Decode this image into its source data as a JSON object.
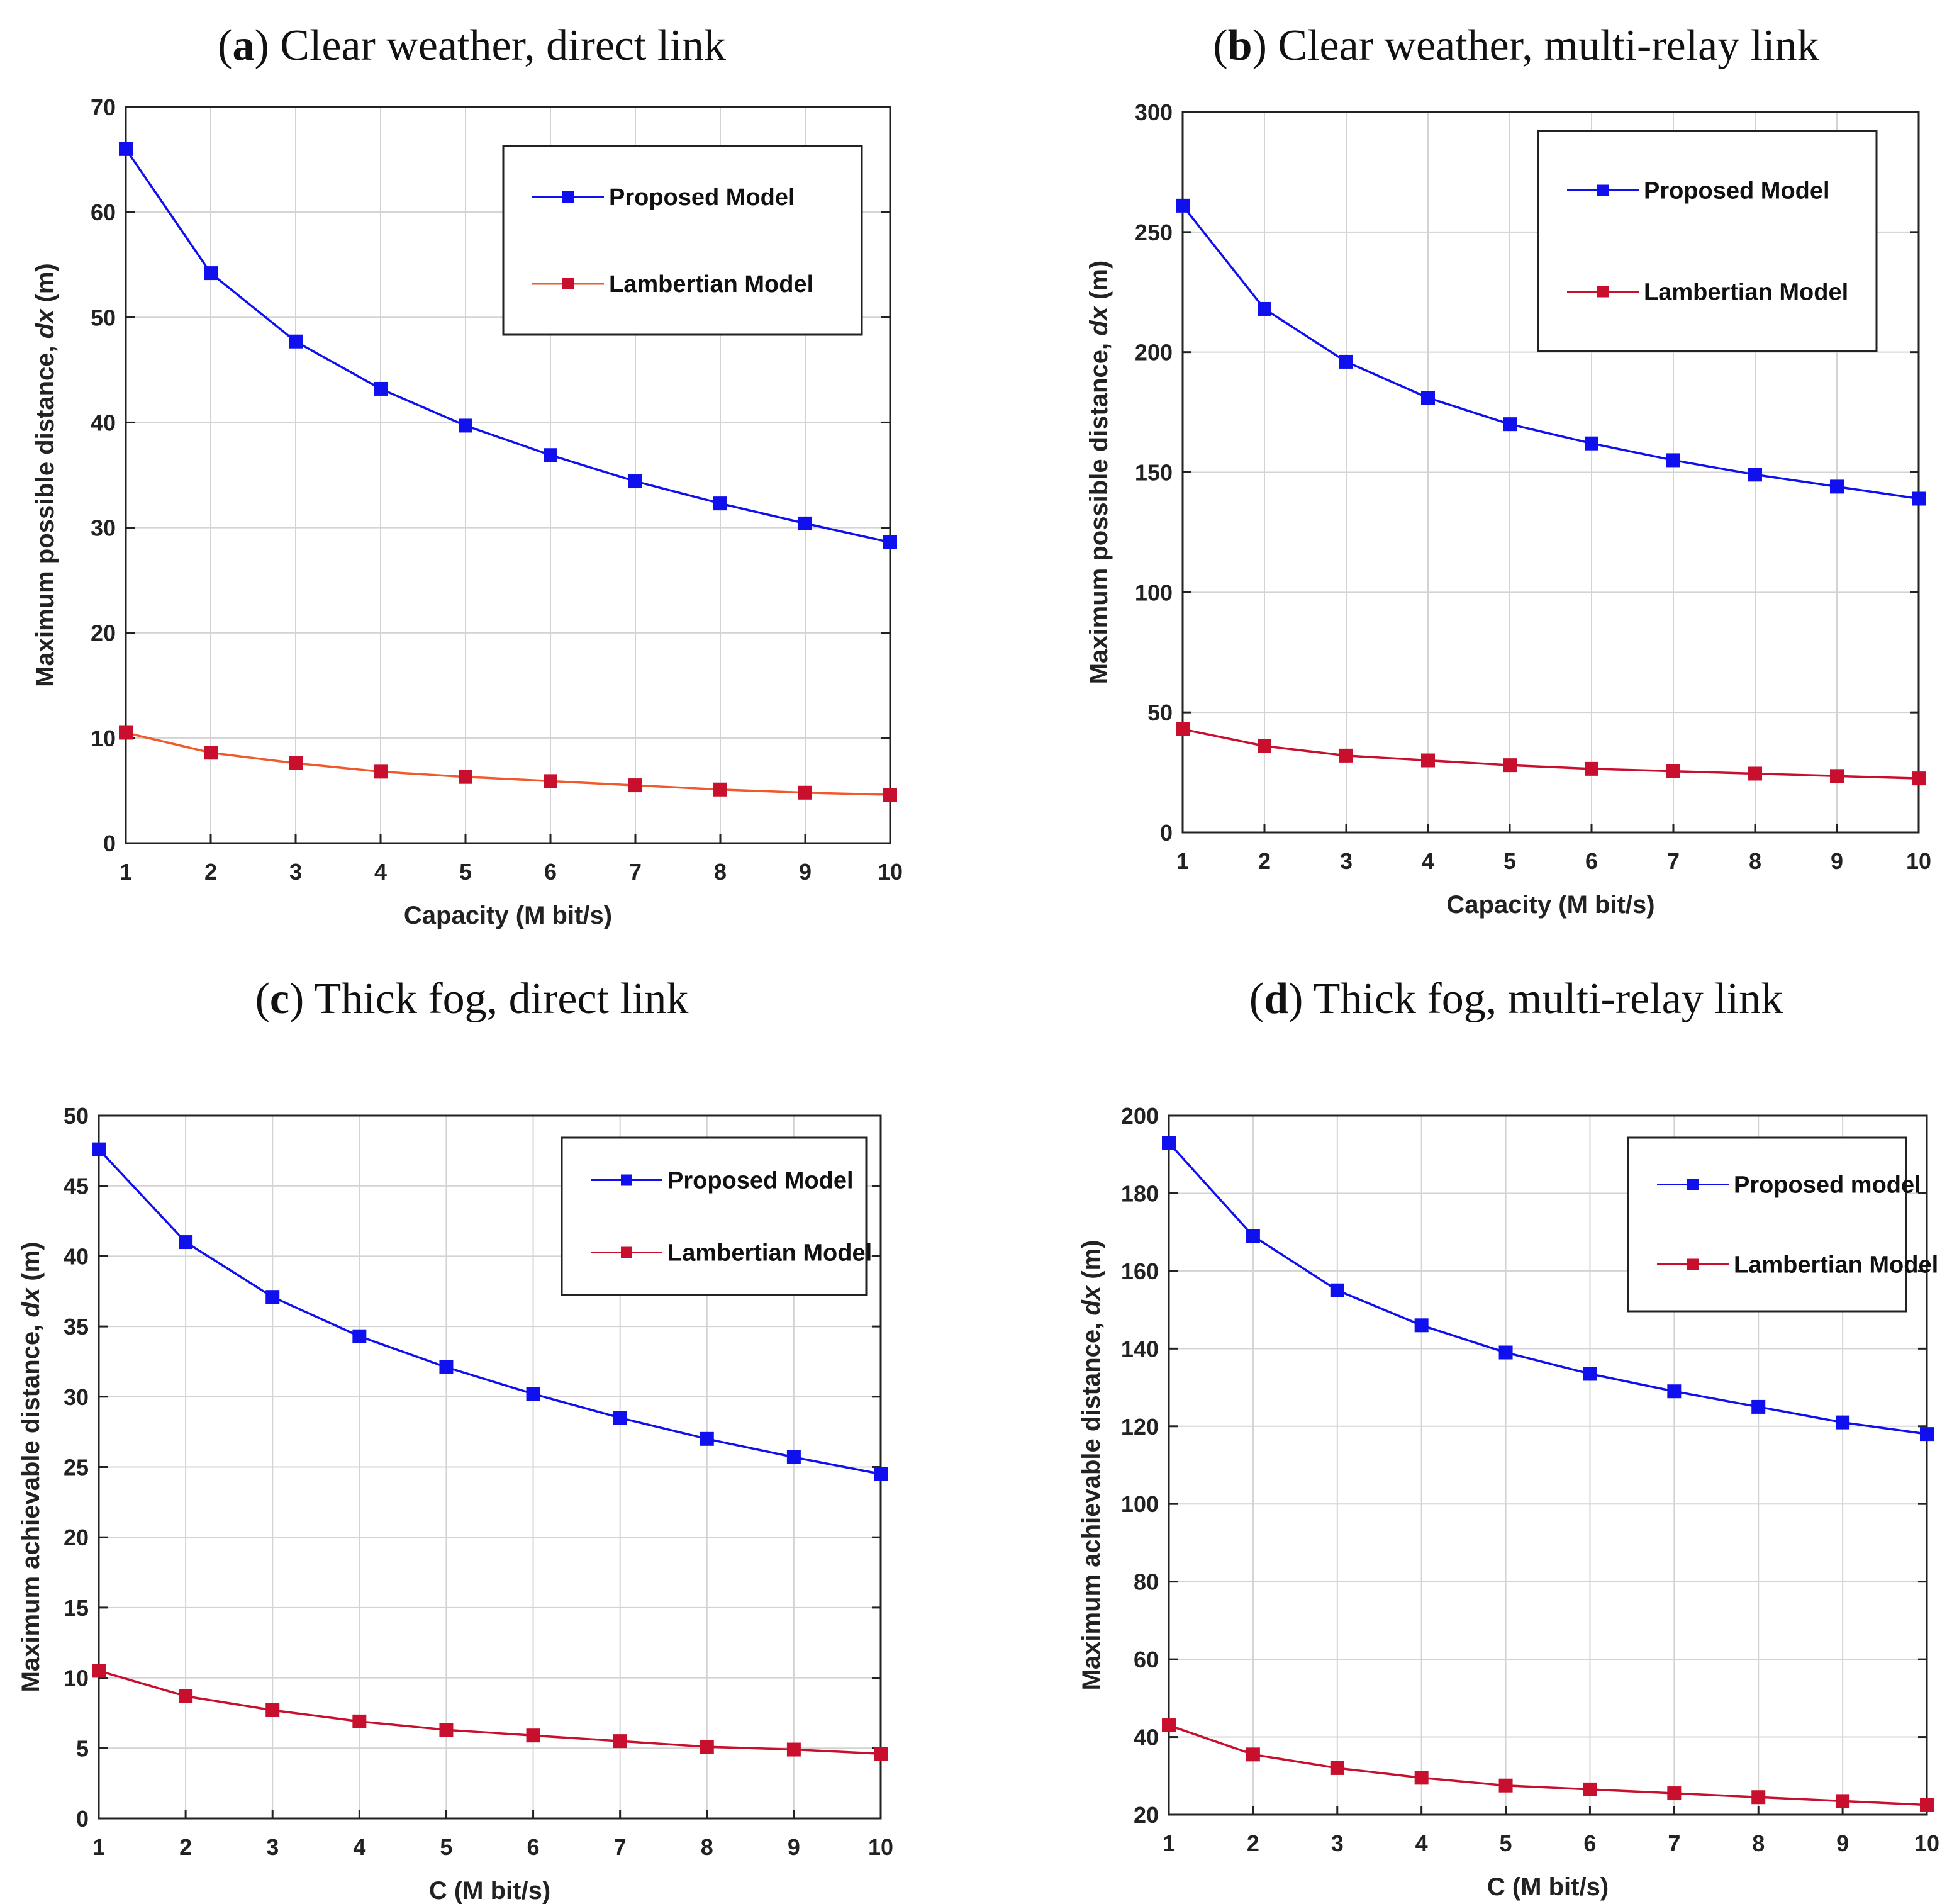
{
  "chart_data": [
    {
      "type": "line",
      "label": "a",
      "title": "Clear weather, direct link",
      "xlabel": "Capacity (M bit/s)",
      "ylabel_prefix": "Maximum possible distance,",
      "ylabel_var": "dx",
      "ylabel_unit": "(m)",
      "x": [
        1,
        2,
        3,
        4,
        5,
        6,
        7,
        8,
        9,
        10
      ],
      "xlim": [
        1,
        10
      ],
      "ylim": [
        0,
        70
      ],
      "yticks": [
        0,
        10,
        20,
        30,
        40,
        50,
        60,
        70
      ],
      "grid": true,
      "legend_position": "top-right",
      "series": [
        {
          "name": "Proposed Model",
          "color": "#1010ee",
          "values": [
            66.0,
            54.2,
            47.7,
            43.2,
            39.7,
            36.9,
            34.4,
            32.3,
            30.4,
            28.6
          ]
        },
        {
          "name": "Lambertian Model",
          "color": "#f05a2a",
          "marker_color": "#c8102e",
          "values": [
            10.5,
            8.6,
            7.6,
            6.8,
            6.3,
            5.9,
            5.5,
            5.1,
            4.8,
            4.6
          ]
        }
      ]
    },
    {
      "type": "line",
      "label": "b",
      "title": "Clear weather, multi-relay link",
      "xlabel": "Capacity (M bit/s)",
      "ylabel_prefix": "Maximum possible distance,",
      "ylabel_var": "dx",
      "ylabel_unit": "(m)",
      "x": [
        1,
        2,
        3,
        4,
        5,
        6,
        7,
        8,
        9,
        10
      ],
      "xlim": [
        1,
        10
      ],
      "ylim": [
        0,
        300
      ],
      "yticks": [
        0,
        50,
        100,
        150,
        200,
        250,
        300
      ],
      "grid": true,
      "legend_position": "top-right",
      "series": [
        {
          "name": "Proposed Model",
          "color": "#1010ee",
          "values": [
            261,
            218,
            196,
            181,
            170,
            162,
            155,
            149,
            144,
            139
          ]
        },
        {
          "name": "Lambertian Model",
          "color": "#c8102e",
          "values": [
            43,
            36,
            32,
            30,
            28,
            26.5,
            25.5,
            24.5,
            23.5,
            22.5
          ]
        }
      ]
    },
    {
      "type": "line",
      "label": "c",
      "title": "Thick fog, direct link",
      "xlabel": "C (M bit/s)",
      "ylabel_prefix": "Maximum achievable distance,",
      "ylabel_var": "dx",
      "ylabel_unit": "(m)",
      "x": [
        1,
        2,
        3,
        4,
        5,
        6,
        7,
        8,
        9,
        10
      ],
      "xlim": [
        1,
        10
      ],
      "ylim": [
        0,
        50
      ],
      "yticks": [
        0,
        5,
        10,
        15,
        20,
        25,
        30,
        35,
        40,
        45,
        50
      ],
      "grid": true,
      "legend_position": "top-right",
      "series": [
        {
          "name": "Proposed Model",
          "color": "#1010ee",
          "values": [
            47.6,
            41.0,
            37.1,
            34.3,
            32.1,
            30.2,
            28.5,
            27.0,
            25.7,
            24.5
          ]
        },
        {
          "name": "Lambertian Model",
          "color": "#c8102e",
          "values": [
            10.5,
            8.7,
            7.7,
            6.9,
            6.3,
            5.9,
            5.5,
            5.1,
            4.9,
            4.6
          ]
        }
      ]
    },
    {
      "type": "line",
      "label": "d",
      "title": "Thick fog, multi-relay link",
      "xlabel": "C (M bit/s)",
      "ylabel_prefix": "Maximum achievable distance,",
      "ylabel_var": "dx",
      "ylabel_unit": "(m)",
      "x": [
        1,
        2,
        3,
        4,
        5,
        6,
        7,
        8,
        9,
        10
      ],
      "xlim": [
        1,
        10
      ],
      "ylim": [
        20,
        200
      ],
      "yticks": [
        20,
        40,
        60,
        80,
        100,
        120,
        140,
        160,
        180,
        200
      ],
      "grid": true,
      "legend_position": "top-right",
      "series": [
        {
          "name": "Proposed model",
          "color": "#1010ee",
          "values": [
            193,
            169,
            155,
            146,
            139,
            133.5,
            129,
            125,
            121,
            118
          ]
        },
        {
          "name": "Lambertian Model",
          "color": "#c8102e",
          "values": [
            43,
            35.5,
            32,
            29.5,
            27.5,
            26.5,
            25.5,
            24.5,
            23.5,
            22.5
          ]
        }
      ]
    }
  ]
}
